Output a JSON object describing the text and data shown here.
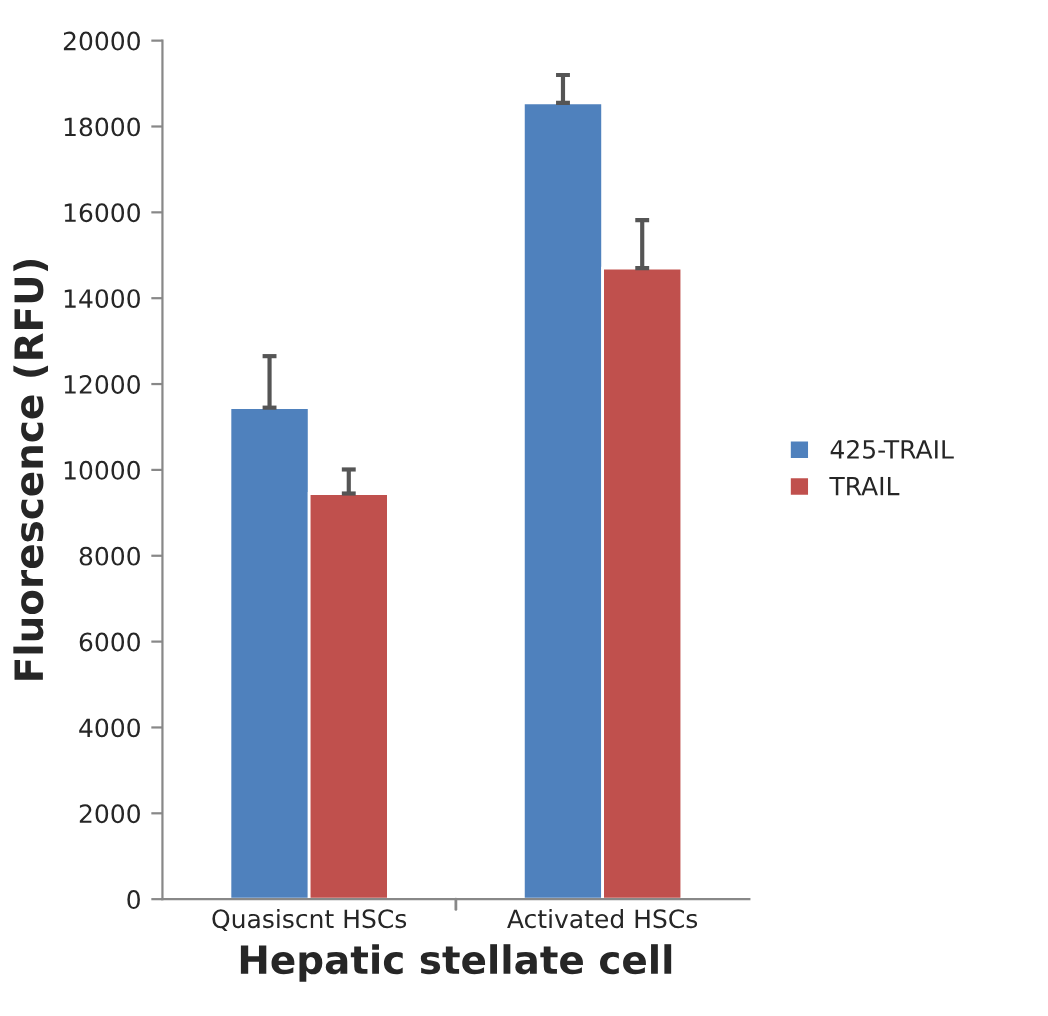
{
  "chart_data": {
    "type": "bar",
    "xlabel": "Hepatic stellate cell",
    "ylabel": "Fluorescence (RFU)",
    "categories": [
      "Quasiscnt HSCs",
      "Activated HSCs"
    ],
    "series": [
      {
        "name": "425-TRAIL",
        "color": "#4f81bd",
        "values": [
          11450,
          18550
        ],
        "errors": [
          [
            11450,
            12650
          ],
          [
            18550,
            19200
          ]
        ]
      },
      {
        "name": "TRAIL",
        "color": "#c0504d",
        "values": [
          9450,
          14700
        ],
        "errors": [
          [
            9450,
            10010
          ],
          [
            14700,
            15820
          ]
        ]
      }
    ],
    "ylim": [
      0,
      20000
    ],
    "yticks": [
      0,
      2000,
      4000,
      6000,
      8000,
      10000,
      12000,
      14000,
      16000,
      18000,
      20000
    ],
    "grid": false,
    "legend": "right"
  }
}
